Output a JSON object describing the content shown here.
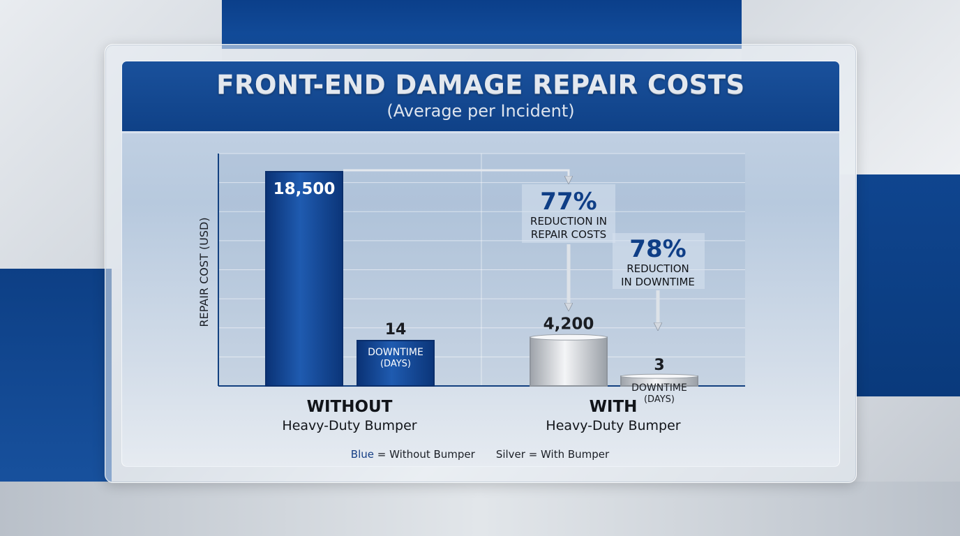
{
  "title": "FRONT-END DAMAGE REPAIR COSTS",
  "subtitle": "(Average per Incident)",
  "colors": {
    "without": "#0e3f8c",
    "with": "#c4c8ce",
    "header": "#134a95",
    "accent_text": "#0f3e86"
  },
  "chart_data": {
    "type": "bar",
    "ylabel": "REPAIR COST (USD)",
    "xlabel": "",
    "grid": true,
    "groups": [
      {
        "title": "WITHOUT",
        "subtitle": "Heavy-Duty Bumper",
        "cost": 18500,
        "cost_label": "18,500",
        "downtime_days": 14,
        "downtime_value_label": "14",
        "downtime_label": [
          "DOWNTIME",
          "(DAYS)"
        ]
      },
      {
        "title": "WITH",
        "subtitle": "Heavy-Duty Bumper",
        "cost": 4200,
        "cost_label": "4,200",
        "downtime_days": 3,
        "downtime_value_label": "3",
        "downtime_label": [
          "DOWNTIME",
          "(DAYS)"
        ]
      }
    ],
    "annotations": [
      {
        "value": "77%",
        "lines": [
          "REDUCTION IN",
          "REPAIR COSTS"
        ]
      },
      {
        "value": "78%",
        "lines": [
          "REDUCTION",
          "IN DOWNTIME"
        ]
      }
    ]
  },
  "legend": {
    "blue_word": "Blue",
    "blue_rest": " = Without Bumper",
    "silver": "Silver = With Bumper"
  }
}
